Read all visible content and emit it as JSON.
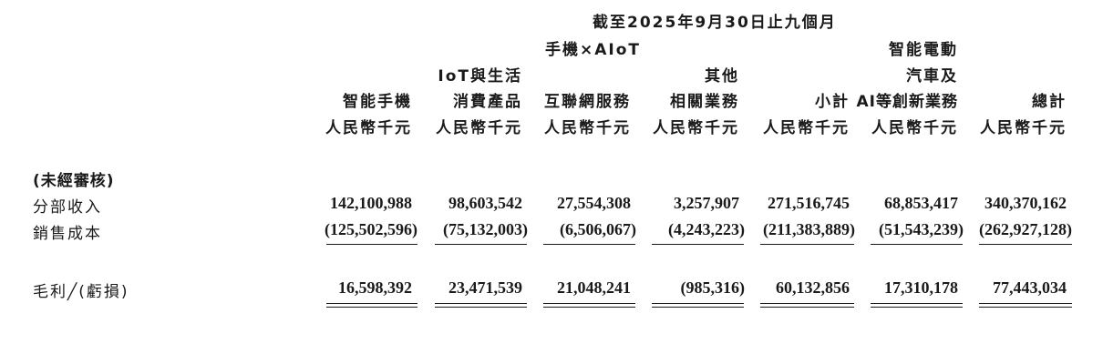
{
  "period_title": "截至2025年9月30日止九個月",
  "group_header": "手機×AIoT",
  "columns": [
    {
      "name_lines": [
        "",
        "",
        "智能手機"
      ],
      "unit": "人民幣千元"
    },
    {
      "name_lines": [
        "",
        "IoT與生活",
        "消費產品"
      ],
      "unit": "人民幣千元"
    },
    {
      "name_lines": [
        "",
        "",
        "互聯網服務"
      ],
      "unit": "人民幣千元"
    },
    {
      "name_lines": [
        "",
        "其他",
        "相關業務"
      ],
      "unit": "人民幣千元"
    },
    {
      "name_lines": [
        "",
        "",
        "小計"
      ],
      "unit": "人民幣千元"
    },
    {
      "name_lines": [
        "智能電動",
        "汽車及",
        "AI等創新業務"
      ],
      "unit": "人民幣千元"
    },
    {
      "name_lines": [
        "",
        "",
        "總計"
      ],
      "unit": "人民幣千元"
    }
  ],
  "section_label": "(未經審核)",
  "rows": [
    {
      "label": "分部收入",
      "values": [
        "142,100,988",
        "98,603,542",
        "27,554,308",
        "3,257,907",
        "271,516,745",
        "68,853,417",
        "340,370,162"
      ]
    },
    {
      "label": "銷售成本",
      "values": [
        "(125,502,596)",
        "(75,132,003)",
        "(6,506,067)",
        "(4,243,223)",
        "(211,383,889)",
        "(51,543,239)",
        "(262,927,128)"
      ]
    },
    {
      "label": "毛利╱(虧損)",
      "values": [
        "16,598,392",
        "23,471,539",
        "21,048,241",
        "(985,316)",
        "60,132,856",
        "17,310,178",
        "77,443,034"
      ]
    }
  ]
}
